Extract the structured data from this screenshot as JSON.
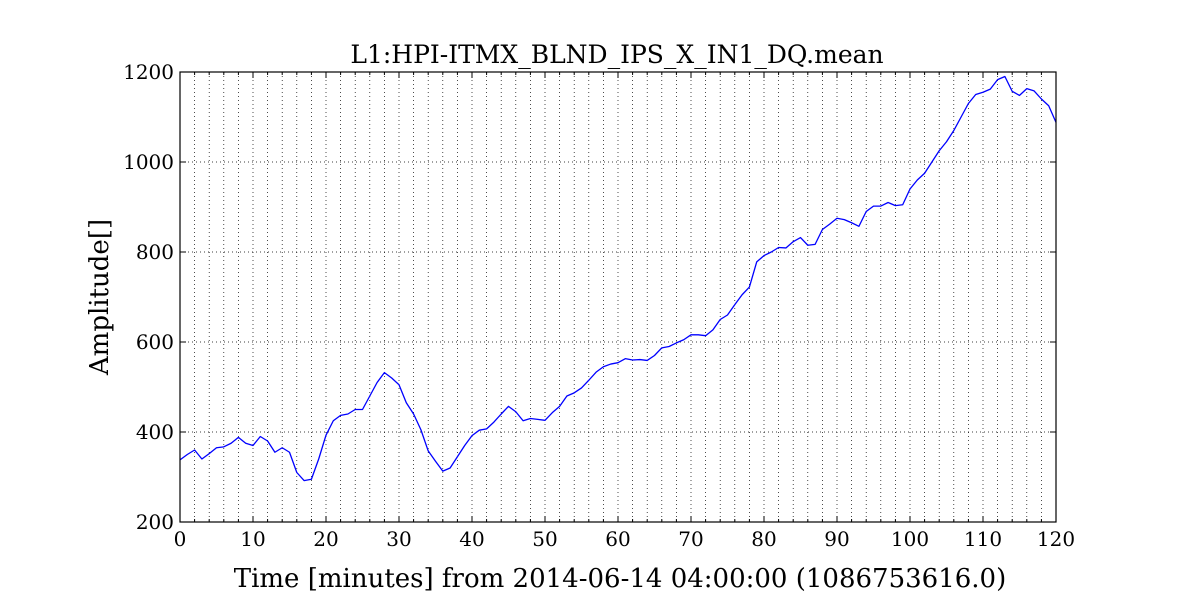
{
  "chart_data": {
    "type": "line",
    "title": "L1:HPI-ITMX_BLND_IPS_X_IN1_DQ.mean",
    "xlabel": "Time [minutes] from 2014-06-14 04:00:00 (1086753616.0)",
    "ylabel": "Amplitude[]",
    "xlim": [
      0,
      120
    ],
    "ylim": [
      200,
      1200
    ],
    "x_ticks": [
      0,
      10,
      20,
      30,
      40,
      50,
      60,
      70,
      80,
      90,
      100,
      110,
      120
    ],
    "x_tick_labels": [
      "0",
      "10",
      "20",
      "30",
      "40",
      "50",
      "60",
      "70",
      "80",
      "90",
      "100",
      "110",
      "120"
    ],
    "y_ticks": [
      200,
      400,
      600,
      800,
      1000,
      1200
    ],
    "y_tick_labels": [
      "200",
      "400",
      "600",
      "800",
      "1000",
      "1200"
    ],
    "x_minor_grid_step": 2,
    "grid": true,
    "grid_style": "dotted",
    "line_color": "#0000ff",
    "series": [
      {
        "x": [
          0,
          1,
          2,
          3,
          4,
          5,
          6,
          7,
          8,
          9,
          10,
          11,
          12,
          13,
          14,
          15,
          16,
          17,
          18,
          19,
          20,
          21,
          22,
          23,
          24,
          25,
          26,
          27,
          28,
          29,
          30,
          31,
          32,
          33,
          34,
          35,
          36,
          37,
          38,
          39,
          40,
          41,
          42,
          43,
          44,
          45,
          46,
          47,
          48,
          49,
          50,
          51,
          52,
          53,
          54,
          55,
          56,
          57,
          58,
          59,
          60,
          61,
          62,
          63,
          64,
          65,
          66,
          67,
          68,
          69,
          70,
          71,
          72,
          73,
          74,
          75,
          76,
          77,
          78,
          79,
          80,
          81,
          82,
          83,
          84,
          85,
          86,
          87,
          88,
          89,
          90,
          91,
          92,
          93,
          94,
          95,
          96,
          97,
          98,
          99,
          100,
          101,
          102,
          103,
          104,
          105,
          106,
          107,
          108,
          109,
          110,
          111,
          112,
          113,
          114,
          115,
          116,
          117,
          118,
          119,
          120
        ],
        "values": [
          338,
          350,
          360,
          340,
          352,
          365,
          367,
          375,
          388,
          375,
          370,
          390,
          380,
          355,
          365,
          355,
          310,
          292,
          295,
          340,
          393,
          425,
          437,
          440,
          450,
          450,
          480,
          510,
          532,
          520,
          505,
          465,
          440,
          405,
          358,
          335,
          313,
          320,
          345,
          370,
          392,
          404,
          407,
          422,
          440,
          457,
          445,
          425,
          430,
          428,
          426,
          443,
          457,
          480,
          487,
          498,
          515,
          533,
          545,
          551,
          554,
          563,
          560,
          561,
          559,
          570,
          587,
          590,
          598,
          605,
          616,
          616,
          614,
          627,
          650,
          660,
          683,
          705,
          722,
          778,
          792,
          800,
          810,
          809,
          823,
          832,
          815,
          817,
          850,
          862,
          875,
          872,
          865,
          857,
          890,
          902,
          902,
          910,
          903,
          905,
          940,
          960,
          975,
          1000,
          1025,
          1045,
          1070,
          1100,
          1130,
          1150,
          1155,
          1162,
          1183,
          1190,
          1157,
          1148,
          1163,
          1158,
          1140,
          1125,
          1088
        ]
      }
    ]
  }
}
